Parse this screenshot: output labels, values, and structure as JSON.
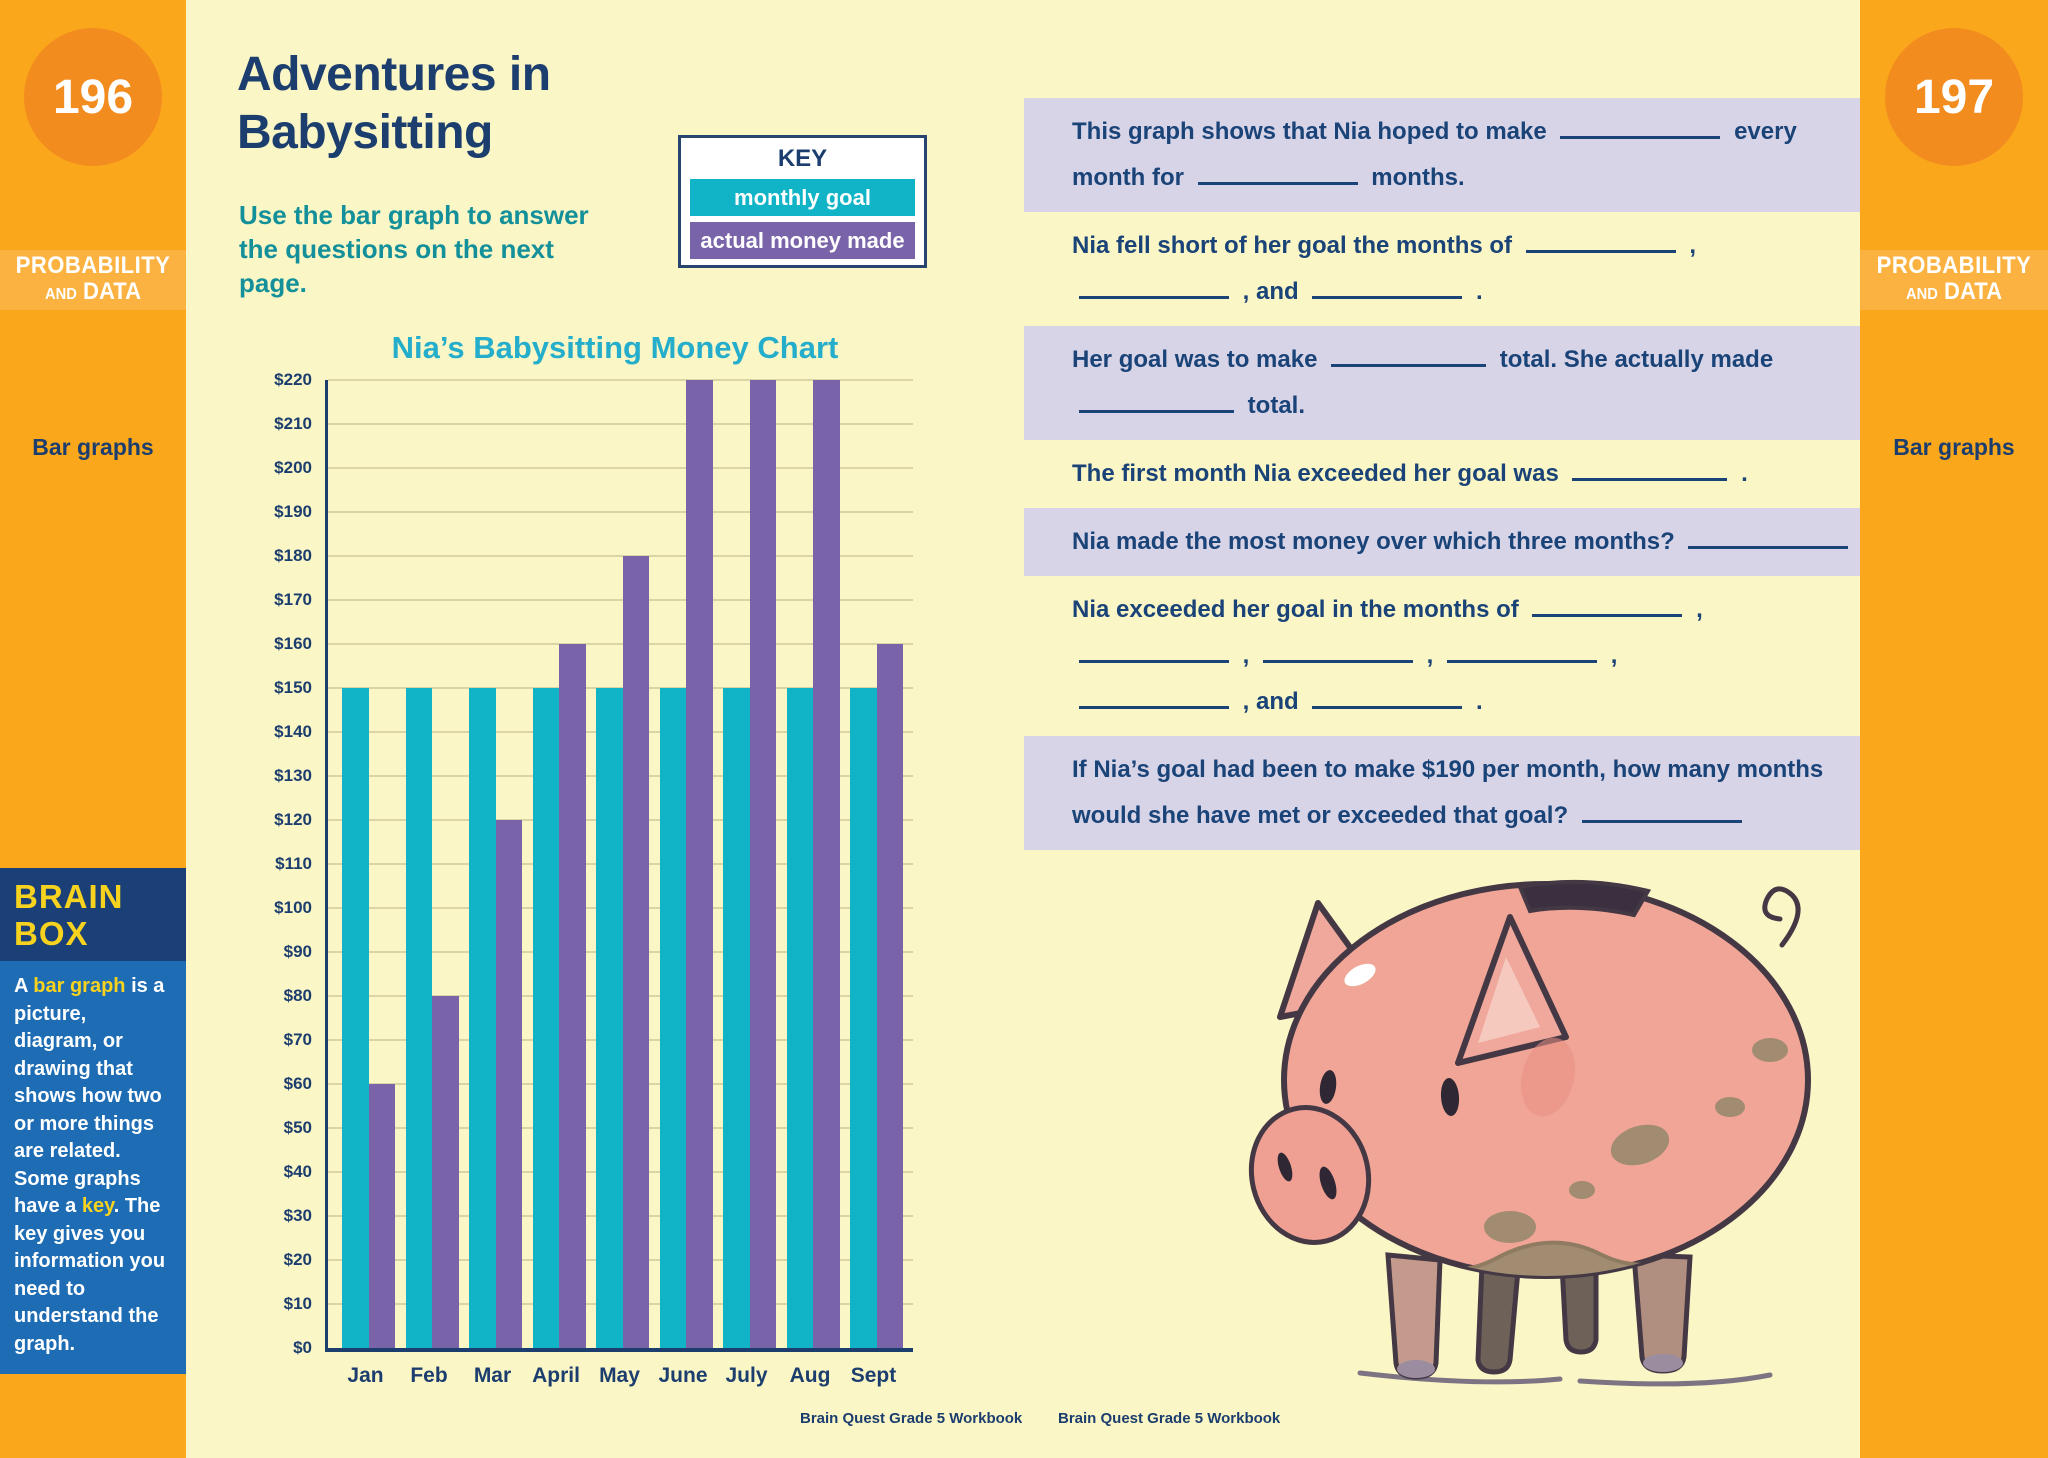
{
  "left_sidebar": {
    "page_number": "196",
    "section_line1": "PROBABILITY",
    "section_and": "AND",
    "section_line2": "DATA",
    "topic": "Bar graphs",
    "brain_box": {
      "title_line1": "BRAIN",
      "title_line2": "BOX",
      "body_segments": [
        {
          "text": "A "
        },
        {
          "text": "bar graph",
          "highlight": true
        },
        {
          "text": " is a picture, diagram, or drawing that shows how two or more things are related. Some graphs have a "
        },
        {
          "text": "key",
          "highlight": true
        },
        {
          "text": ". The key gives you information you need to understand the graph."
        }
      ]
    }
  },
  "right_sidebar": {
    "page_number": "197",
    "section_line1": "PROBABILITY",
    "section_and": "AND",
    "section_line2": "DATA",
    "topic": "Bar graphs"
  },
  "left_page": {
    "title_line1": "Adventures in",
    "title_line2": "Babysitting",
    "subtitle_segments": [
      {
        "text": "Use the "
      },
      {
        "text": "bar graph",
        "bold": true
      },
      {
        "text": " to answer the questions on the next page."
      }
    ],
    "key": {
      "title": "KEY",
      "items": [
        {
          "label": "monthly goal",
          "color": "#10B4C6"
        },
        {
          "label": "actual money made",
          "color": "#7A64A9"
        }
      ]
    },
    "footer": "Brain Quest Grade 5 Workbook"
  },
  "right_page": {
    "illustration": "piggy-bank",
    "footer": "Brain Quest Grade 5 Workbook",
    "questions": [
      {
        "shaded": true,
        "lines": [
          [
            {
              "t": "This graph shows that Nia hoped to make "
            },
            {
              "b": 160
            },
            {
              "t": " every"
            }
          ],
          [
            {
              "t": "month for "
            },
            {
              "b": 160
            },
            {
              "t": " months."
            }
          ]
        ]
      },
      {
        "shaded": false,
        "lines": [
          [
            {
              "t": "Nia fell short of her goal the months of "
            },
            {
              "b": 150
            },
            {
              "t": " ,"
            }
          ],
          [
            {
              "b": 150
            },
            {
              "t": " , and "
            },
            {
              "b": 150
            },
            {
              "t": " ."
            }
          ]
        ]
      },
      {
        "shaded": true,
        "lines": [
          [
            {
              "t": "Her goal was to make "
            },
            {
              "b": 155
            },
            {
              "t": " total. She actually made"
            }
          ],
          [
            {
              "b": 155
            },
            {
              "t": " total."
            }
          ]
        ]
      },
      {
        "shaded": false,
        "lines": [
          [
            {
              "t": "The first month Nia exceeded her goal was "
            },
            {
              "b": 155
            },
            {
              "t": " ."
            }
          ]
        ]
      },
      {
        "shaded": true,
        "lines": [
          [
            {
              "t": "Nia made the most money over which three months? "
            },
            {
              "b": 160
            }
          ]
        ]
      },
      {
        "shaded": false,
        "lines": [
          [
            {
              "t": "Nia exceeded her goal in the months of "
            },
            {
              "b": 150
            },
            {
              "t": " ,"
            }
          ],
          [
            {
              "b": 150
            },
            {
              "t": " , "
            },
            {
              "b": 150
            },
            {
              "t": " , "
            },
            {
              "b": 150
            },
            {
              "t": " ,"
            }
          ],
          [
            {
              "b": 150
            },
            {
              "t": " , and "
            },
            {
              "b": 150
            },
            {
              "t": " ."
            }
          ]
        ]
      },
      {
        "shaded": true,
        "lines": [
          [
            {
              "t": "If Nia’s goal had been to make $190 per month, how many months"
            }
          ],
          [
            {
              "t": "would she have met or exceeded that goal? "
            },
            {
              "b": 160
            }
          ]
        ]
      }
    ]
  },
  "chart_data": {
    "type": "bar",
    "title": "Nia’s Babysitting Money Chart",
    "categories": [
      "Jan",
      "Feb",
      "Mar",
      "April",
      "May",
      "June",
      "July",
      "Aug",
      "Sept"
    ],
    "series": [
      {
        "name": "monthly goal",
        "color": "#10B4C6",
        "values": [
          150,
          150,
          150,
          150,
          150,
          150,
          150,
          150,
          150
        ]
      },
      {
        "name": "actual money made",
        "color": "#7A64A9",
        "values": [
          60,
          80,
          120,
          160,
          180,
          220,
          220,
          220,
          160
        ]
      }
    ],
    "xlabel": "",
    "ylabel": "",
    "ymin": 0,
    "ymax": 220,
    "ytick_step": 10,
    "ytick_prefix": "$",
    "grid": true,
    "legend_position": "top-right-key-box"
  },
  "colors": {
    "page_cream": "#FBF6C6",
    "sidebar_orange": "#FAA71C",
    "circle_orange": "#F28C1E",
    "band_orange": "#FBB240",
    "navy": "#1C3E6E",
    "teal_text": "#13909A",
    "chart_title_teal": "#25AECB",
    "bar_teal": "#10B4C6",
    "bar_purple": "#7A64A9",
    "panel_lavender": "#D8D4E8",
    "gridline_tan": "#DBD4A9",
    "brainbox_header_navy": "#1A4077",
    "brainbox_body_blue": "#1D6CB4",
    "brainbox_yellow": "#F7D21E"
  }
}
